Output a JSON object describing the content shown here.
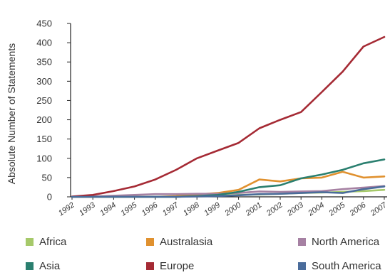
{
  "chart_data": {
    "type": "line",
    "title": "",
    "xlabel": "",
    "ylabel": "Absolute Number of Statements",
    "ylim": [
      0,
      450
    ],
    "yticks": [
      "0",
      "50",
      "100",
      "150",
      "200",
      "250",
      "300",
      "350",
      "400",
      "450"
    ],
    "categories": [
      "1992",
      "1993",
      "1994",
      "1995",
      "1996",
      "1997",
      "1998",
      "1999",
      "2000",
      "2001",
      "2002",
      "2003",
      "2004",
      "2005",
      "2006",
      "2007"
    ],
    "grid": false,
    "legend_position": "bottom",
    "series": [
      {
        "name": "Africa",
        "color": "#a6c96a",
        "values": [
          0,
          0,
          0,
          0,
          0,
          0,
          2,
          3,
          5,
          6,
          8,
          10,
          11,
          13,
          15,
          18
        ]
      },
      {
        "name": "Australasia",
        "color": "#e0912f",
        "values": [
          0,
          0,
          0,
          0,
          0,
          2,
          6,
          10,
          18,
          45,
          40,
          48,
          50,
          65,
          50,
          53
        ]
      },
      {
        "name": "North America",
        "color": "#a681a3",
        "values": [
          0,
          1,
          3,
          5,
          7,
          7,
          8,
          8,
          10,
          14,
          13,
          14,
          15,
          20,
          24,
          28
        ]
      },
      {
        "name": "Asia",
        "color": "#2a7f6f",
        "values": [
          0,
          0,
          0,
          0,
          0,
          0,
          2,
          5,
          13,
          25,
          30,
          48,
          58,
          70,
          87,
          97
        ]
      },
      {
        "name": "Europe",
        "color": "#a52a34",
        "values": [
          1,
          5,
          15,
          27,
          45,
          70,
          100,
          120,
          140,
          178,
          200,
          220,
          272,
          325,
          390,
          415
        ]
      },
      {
        "name": "South America",
        "color": "#4a6c9b",
        "values": [
          0,
          0,
          0,
          0,
          0,
          0,
          1,
          2,
          4,
          7,
          8,
          10,
          12,
          10,
          20,
          27
        ]
      }
    ]
  }
}
